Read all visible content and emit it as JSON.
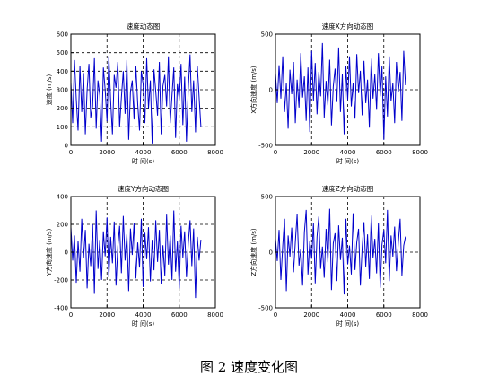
{
  "caption": "图 2  速度变化图",
  "chart_data": [
    {
      "type": "line",
      "title": "速度动态图",
      "xlabel": "时 间(s)",
      "ylabel": "速度 (m/s)",
      "xlim": [
        0,
        8000
      ],
      "ylim": [
        0,
        600
      ],
      "xticks": [
        0,
        2000,
        4000,
        6000,
        8000
      ],
      "yticks": [
        0,
        100,
        200,
        300,
        400,
        500,
        600
      ],
      "grid": "dashed",
      "color": "#0000cc",
      "x": [
        0,
        100,
        200,
        300,
        400,
        500,
        600,
        700,
        800,
        900,
        1000,
        1100,
        1200,
        1300,
        1400,
        1500,
        1600,
        1700,
        1800,
        1900,
        2000,
        2100,
        2200,
        2300,
        2400,
        2500,
        2600,
        2700,
        2800,
        2900,
        3000,
        3100,
        3200,
        3300,
        3400,
        3500,
        3600,
        3700,
        3800,
        3900,
        4000,
        4100,
        4200,
        4300,
        4400,
        4500,
        4600,
        4700,
        4800,
        4900,
        5000,
        5100,
        5200,
        5300,
        5400,
        5500,
        5600,
        5700,
        5800,
        5900,
        6000,
        6100,
        6200,
        6300,
        6400,
        6500,
        6600,
        6700,
        6800,
        6900,
        7000,
        7100,
        7200
      ],
      "values": [
        340,
        120,
        460,
        250,
        80,
        430,
        180,
        390,
        60,
        300,
        440,
        150,
        210,
        470,
        90,
        350,
        270,
        20,
        420,
        300,
        130,
        480,
        240,
        60,
        380,
        310,
        450,
        100,
        260,
        400,
        170,
        460,
        30,
        290,
        350,
        140,
        430,
        220,
        80,
        400,
        330,
        120,
        470,
        200,
        350,
        10,
        410,
        290,
        160,
        450,
        60,
        320,
        380,
        210,
        480,
        120,
        270,
        420,
        40,
        330,
        250,
        440,
        110,
        370,
        20,
        300,
        490,
        180,
        350,
        70,
        430,
        260,
        100
      ]
    },
    {
      "type": "line",
      "title": "速度X方向动态图",
      "xlabel": "时 间(s)",
      "ylabel": "X方向速度 (m/s)",
      "xlim": [
        0,
        8000
      ],
      "ylim": [
        -500,
        500
      ],
      "xticks": [
        0,
        2000,
        4000,
        6000,
        8000
      ],
      "yticks": [
        -500,
        0,
        500
      ],
      "grid": "dashed",
      "color": "#0000cc",
      "x": [
        0,
        100,
        200,
        300,
        400,
        500,
        600,
        700,
        800,
        900,
        1000,
        1100,
        1200,
        1300,
        1400,
        1500,
        1600,
        1700,
        1800,
        1900,
        2000,
        2100,
        2200,
        2300,
        2400,
        2500,
        2600,
        2700,
        2800,
        2900,
        3000,
        3100,
        3200,
        3300,
        3400,
        3500,
        3600,
        3700,
        3800,
        3900,
        4000,
        4100,
        4200,
        4300,
        4400,
        4500,
        4600,
        4700,
        4800,
        4900,
        5000,
        5100,
        5200,
        5300,
        5400,
        5500,
        5600,
        5700,
        5800,
        5900,
        6000,
        6100,
        6200,
        6300,
        6400,
        6500,
        6600,
        6700,
        6800,
        6900,
        7000,
        7100,
        7200
      ],
      "values": [
        150,
        -120,
        220,
        -80,
        300,
        -200,
        60,
        -350,
        180,
        -40,
        250,
        -300,
        90,
        -160,
        330,
        -70,
        120,
        -280,
        200,
        -380,
        350,
        -100,
        240,
        -220,
        160,
        -60,
        420,
        -250,
        80,
        -140,
        270,
        -320,
        30,
        190,
        -110,
        380,
        -200,
        140,
        -400,
        210,
        -90,
        300,
        -150,
        60,
        -260,
        320,
        -30,
        170,
        -230,
        260,
        -120,
        90,
        -340,
        280,
        -80,
        140,
        -180,
        330,
        -60,
        210,
        -450,
        120,
        -240,
        300,
        -100,
        60,
        -300,
        250,
        -20,
        160,
        -280,
        350,
        40
      ]
    },
    {
      "type": "line",
      "title": "速度Y方向动态图",
      "xlabel": "时 间(s)",
      "ylabel": "Y方向速度 (m/s)",
      "xlim": [
        0,
        8000
      ],
      "ylim": [
        -400,
        400
      ],
      "xticks": [
        0,
        2000,
        4000,
        6000,
        8000
      ],
      "yticks": [
        -400,
        -200,
        0,
        200,
        400
      ],
      "grid": "dashed",
      "color": "#0000cc",
      "x": [
        0,
        100,
        200,
        300,
        400,
        500,
        600,
        700,
        800,
        900,
        1000,
        1100,
        1200,
        1300,
        1400,
        1500,
        1600,
        1700,
        1800,
        1900,
        2000,
        2100,
        2200,
        2300,
        2400,
        2500,
        2600,
        2700,
        2800,
        2900,
        3000,
        3100,
        3200,
        3300,
        3400,
        3500,
        3600,
        3700,
        3800,
        3900,
        4000,
        4100,
        4200,
        4300,
        4400,
        4500,
        4600,
        4700,
        4800,
        4900,
        5000,
        5100,
        5200,
        5300,
        5400,
        5500,
        5600,
        5700,
        5800,
        5900,
        6000,
        6100,
        6200,
        6300,
        6400,
        6500,
        6600,
        6700,
        6800,
        6900,
        7000,
        7100,
        7200
      ],
      "values": [
        180,
        -60,
        120,
        -220,
        80,
        -140,
        240,
        -40,
        160,
        -260,
        60,
        -100,
        200,
        -300,
        300,
        -120,
        90,
        -200,
        150,
        -30,
        250,
        -180,
        110,
        -80,
        220,
        -240,
        40,
        190,
        -150,
        260,
        -60,
        130,
        -280,
        170,
        -20,
        210,
        -190,
        70,
        -110,
        240,
        -250,
        140,
        -50,
        180,
        -210,
        90,
        -130,
        230,
        -70,
        160,
        -230,
        50,
        -170,
        270,
        -90,
        120,
        -200,
        300,
        -140,
        80,
        -260,
        190,
        -40,
        150,
        -180,
        60,
        230,
        -100,
        170,
        -330,
        110,
        -60,
        90
      ]
    },
    {
      "type": "line",
      "title": "速度Z方向动态图",
      "xlabel": "时 间(s)",
      "ylabel": "Z方向速度 (m/s)",
      "xlim": [
        0,
        8000
      ],
      "ylim": [
        -500,
        500
      ],
      "xticks": [
        0,
        2000,
        4000,
        6000,
        8000
      ],
      "yticks": [
        -500,
        0,
        500
      ],
      "grid": "dashed",
      "color": "#0000cc",
      "x": [
        0,
        100,
        200,
        300,
        400,
        500,
        600,
        700,
        800,
        900,
        1000,
        1100,
        1200,
        1300,
        1400,
        1500,
        1600,
        1700,
        1800,
        1900,
        2000,
        2100,
        2200,
        2300,
        2400,
        2500,
        2600,
        2700,
        2800,
        2900,
        3000,
        3100,
        3200,
        3300,
        3400,
        3500,
        3600,
        3700,
        3800,
        3900,
        4000,
        4100,
        4200,
        4300,
        4400,
        4500,
        4600,
        4700,
        4800,
        4900,
        5000,
        5100,
        5200,
        5300,
        5400,
        5500,
        5600,
        5700,
        5800,
        5900,
        6000,
        6100,
        6200,
        6300,
        6400,
        6500,
        6600,
        6700,
        6800,
        6900,
        7000,
        7100,
        7200
      ],
      "values": [
        120,
        -80,
        200,
        -250,
        60,
        300,
        -350,
        150,
        -40,
        220,
        -180,
        90,
        340,
        -120,
        30,
        -300,
        180,
        380,
        -200,
        100,
        -60,
        260,
        -280,
        140,
        320,
        -150,
        50,
        -230,
        210,
        -90,
        390,
        -340,
        80,
        170,
        -260,
        240,
        -70,
        130,
        -380,
        300,
        -110,
        60,
        -200,
        350,
        -160,
        90,
        210,
        -300,
        40,
        270,
        -130,
        160,
        -240,
        330,
        -50,
        120,
        -190,
        260,
        -320,
        70,
        200,
        -100,
        380,
        -260,
        150,
        -40,
        230,
        -170,
        90,
        300,
        -210,
        60,
        140
      ]
    }
  ]
}
